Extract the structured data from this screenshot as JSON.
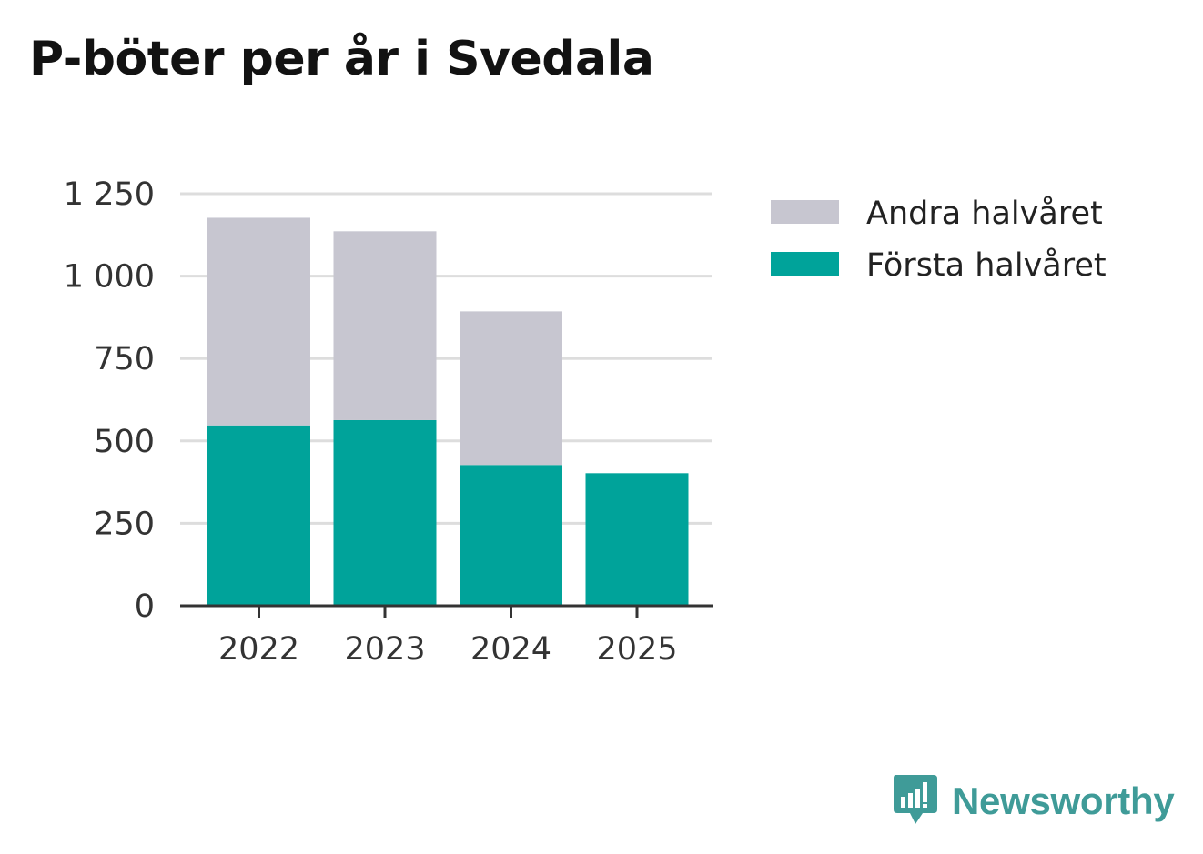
{
  "chart_data": {
    "type": "bar",
    "stacked": true,
    "title": "P-böter per år i Svedala",
    "categories": [
      "2022",
      "2023",
      "2024",
      "2025"
    ],
    "series": [
      {
        "name": "Första halvåret",
        "values": [
          547,
          563,
          427,
          402
        ],
        "color": "#00a39a"
      },
      {
        "name": "Andra halvåret",
        "values": [
          630,
          573,
          466,
          0
        ],
        "color": "#c7c6d0"
      }
    ],
    "legend_order": [
      "Andra halvåret",
      "Första halvåret"
    ],
    "legend_position": "right",
    "yticks": [
      0,
      250,
      500,
      750,
      1000,
      1250
    ],
    "ytick_labels": [
      "0",
      "250",
      "500",
      "750",
      "1 000",
      "1 250"
    ],
    "ylim": [
      0,
      1250
    ],
    "grid": true,
    "xlabel": "",
    "ylabel": ""
  },
  "branding": {
    "name": "Newsworthy",
    "logo_color": "#3f9b98",
    "icon": "newsworthy-logo-icon"
  }
}
